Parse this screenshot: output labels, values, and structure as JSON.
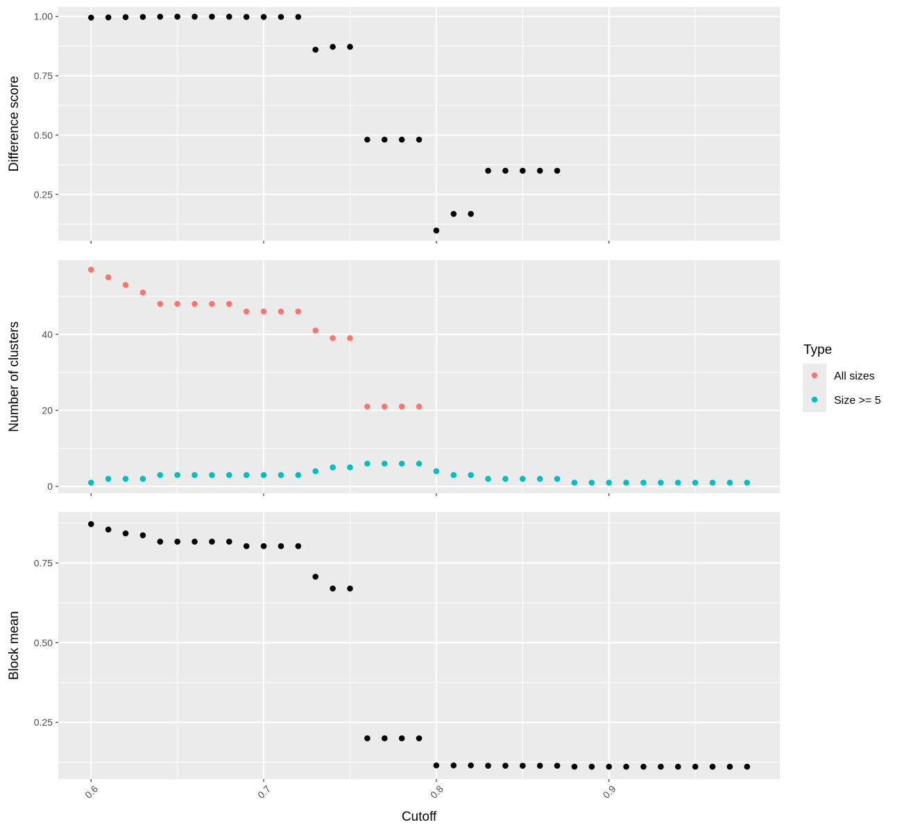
{
  "chart_data": [
    {
      "type": "scatter",
      "ylabel": "Difference score",
      "xlabel": "",
      "xlim": [
        0.581,
        0.999
      ],
      "ylim": [
        0.055,
        1.04
      ],
      "x_ticks": [
        "0.6",
        "0.7",
        "0.8",
        "0.9"
      ],
      "x_tick_values": [
        0.6,
        0.7,
        0.8,
        0.9
      ],
      "y_ticks": [
        "0.25",
        "0.50",
        "0.75",
        "1.00"
      ],
      "y_tick_values": [
        0.25,
        0.5,
        0.75,
        1.0
      ],
      "grid": true,
      "series": [
        {
          "color": "#000000",
          "x": [
            0.6,
            0.61,
            0.62,
            0.63,
            0.64,
            0.65,
            0.66,
            0.67,
            0.68,
            0.69,
            0.7,
            0.71,
            0.72,
            0.73,
            0.74,
            0.75,
            0.76,
            0.77,
            0.78,
            0.79,
            0.8,
            0.81,
            0.82,
            0.83,
            0.84,
            0.85,
            0.86,
            0.87
          ],
          "y": [
            0.995,
            0.996,
            0.997,
            0.998,
            0.999,
            0.999,
            0.999,
            0.999,
            0.999,
            0.998,
            0.998,
            0.998,
            0.998,
            0.86,
            0.872,
            0.872,
            0.481,
            0.481,
            0.481,
            0.481,
            0.098,
            0.168,
            0.168,
            0.35,
            0.35,
            0.35,
            0.35,
            0.35
          ]
        }
      ]
    },
    {
      "type": "scatter",
      "ylabel": "Number of clusters",
      "xlabel": "",
      "xlim": [
        0.581,
        0.999
      ],
      "ylim": [
        -1.8,
        59.5
      ],
      "x_ticks": [
        "0.6",
        "0.7",
        "0.8",
        "0.9"
      ],
      "x_tick_values": [
        0.6,
        0.7,
        0.8,
        0.9
      ],
      "y_ticks": [
        "0",
        "20",
        "40"
      ],
      "y_tick_values": [
        0,
        20,
        40
      ],
      "grid": true,
      "legend": {
        "title": "Type",
        "position": "right",
        "entries": [
          "All sizes",
          "Size >= 5"
        ]
      },
      "series": [
        {
          "name": "All sizes",
          "color": "#F8766D",
          "x": [
            0.6,
            0.61,
            0.62,
            0.63,
            0.64,
            0.65,
            0.66,
            0.67,
            0.68,
            0.69,
            0.7,
            0.71,
            0.72,
            0.73,
            0.74,
            0.75,
            0.76,
            0.77,
            0.78,
            0.79
          ],
          "y": [
            57,
            55,
            53,
            51,
            48,
            48,
            48,
            48,
            48,
            46,
            46,
            46,
            46,
            41,
            39,
            39,
            21,
            21,
            21,
            21
          ]
        },
        {
          "name": "Size >= 5",
          "color": "#00BFC4",
          "x": [
            0.6,
            0.61,
            0.62,
            0.63,
            0.64,
            0.65,
            0.66,
            0.67,
            0.68,
            0.69,
            0.7,
            0.71,
            0.72,
            0.73,
            0.74,
            0.75,
            0.76,
            0.77,
            0.78,
            0.79,
            0.8,
            0.81,
            0.82,
            0.83,
            0.84,
            0.85,
            0.86,
            0.87,
            0.88,
            0.89,
            0.9,
            0.91,
            0.92,
            0.93,
            0.94,
            0.95,
            0.96,
            0.97,
            0.98
          ],
          "y": [
            1,
            2,
            2,
            2,
            3,
            3,
            3,
            3,
            3,
            3,
            3,
            3,
            3,
            4,
            5,
            5,
            6,
            6,
            6,
            6,
            4,
            3,
            3,
            2,
            2,
            2,
            2,
            2,
            1,
            1,
            1,
            1,
            1,
            1,
            1,
            1,
            1,
            1,
            1
          ]
        }
      ]
    },
    {
      "type": "scatter",
      "ylabel": "Block mean",
      "xlabel": "Cutoff",
      "xlim": [
        0.581,
        0.999
      ],
      "ylim": [
        0.072,
        0.91
      ],
      "x_ticks": [
        "0.6",
        "0.7",
        "0.8",
        "0.9"
      ],
      "x_tick_values": [
        0.6,
        0.7,
        0.8,
        0.9
      ],
      "y_ticks": [
        "0.25",
        "0.50",
        "0.75"
      ],
      "y_tick_values": [
        0.25,
        0.5,
        0.75
      ],
      "grid": true,
      "series": [
        {
          "color": "#000000",
          "x": [
            0.6,
            0.61,
            0.62,
            0.63,
            0.64,
            0.65,
            0.66,
            0.67,
            0.68,
            0.69,
            0.7,
            0.71,
            0.72,
            0.73,
            0.74,
            0.75,
            0.76,
            0.77,
            0.78,
            0.79,
            0.8,
            0.81,
            0.82,
            0.83,
            0.84,
            0.85,
            0.86,
            0.87,
            0.88,
            0.89,
            0.9,
            0.91,
            0.92,
            0.93,
            0.94,
            0.95,
            0.96,
            0.97,
            0.98
          ],
          "y": [
            0.872,
            0.855,
            0.843,
            0.837,
            0.817,
            0.817,
            0.817,
            0.817,
            0.817,
            0.803,
            0.803,
            0.803,
            0.803,
            0.707,
            0.67,
            0.67,
            0.2,
            0.2,
            0.2,
            0.2,
            0.115,
            0.115,
            0.115,
            0.114,
            0.114,
            0.114,
            0.114,
            0.114,
            0.111,
            0.111,
            0.111,
            0.111,
            0.111,
            0.111,
            0.111,
            0.111,
            0.111,
            0.111,
            0.111
          ]
        }
      ]
    }
  ]
}
